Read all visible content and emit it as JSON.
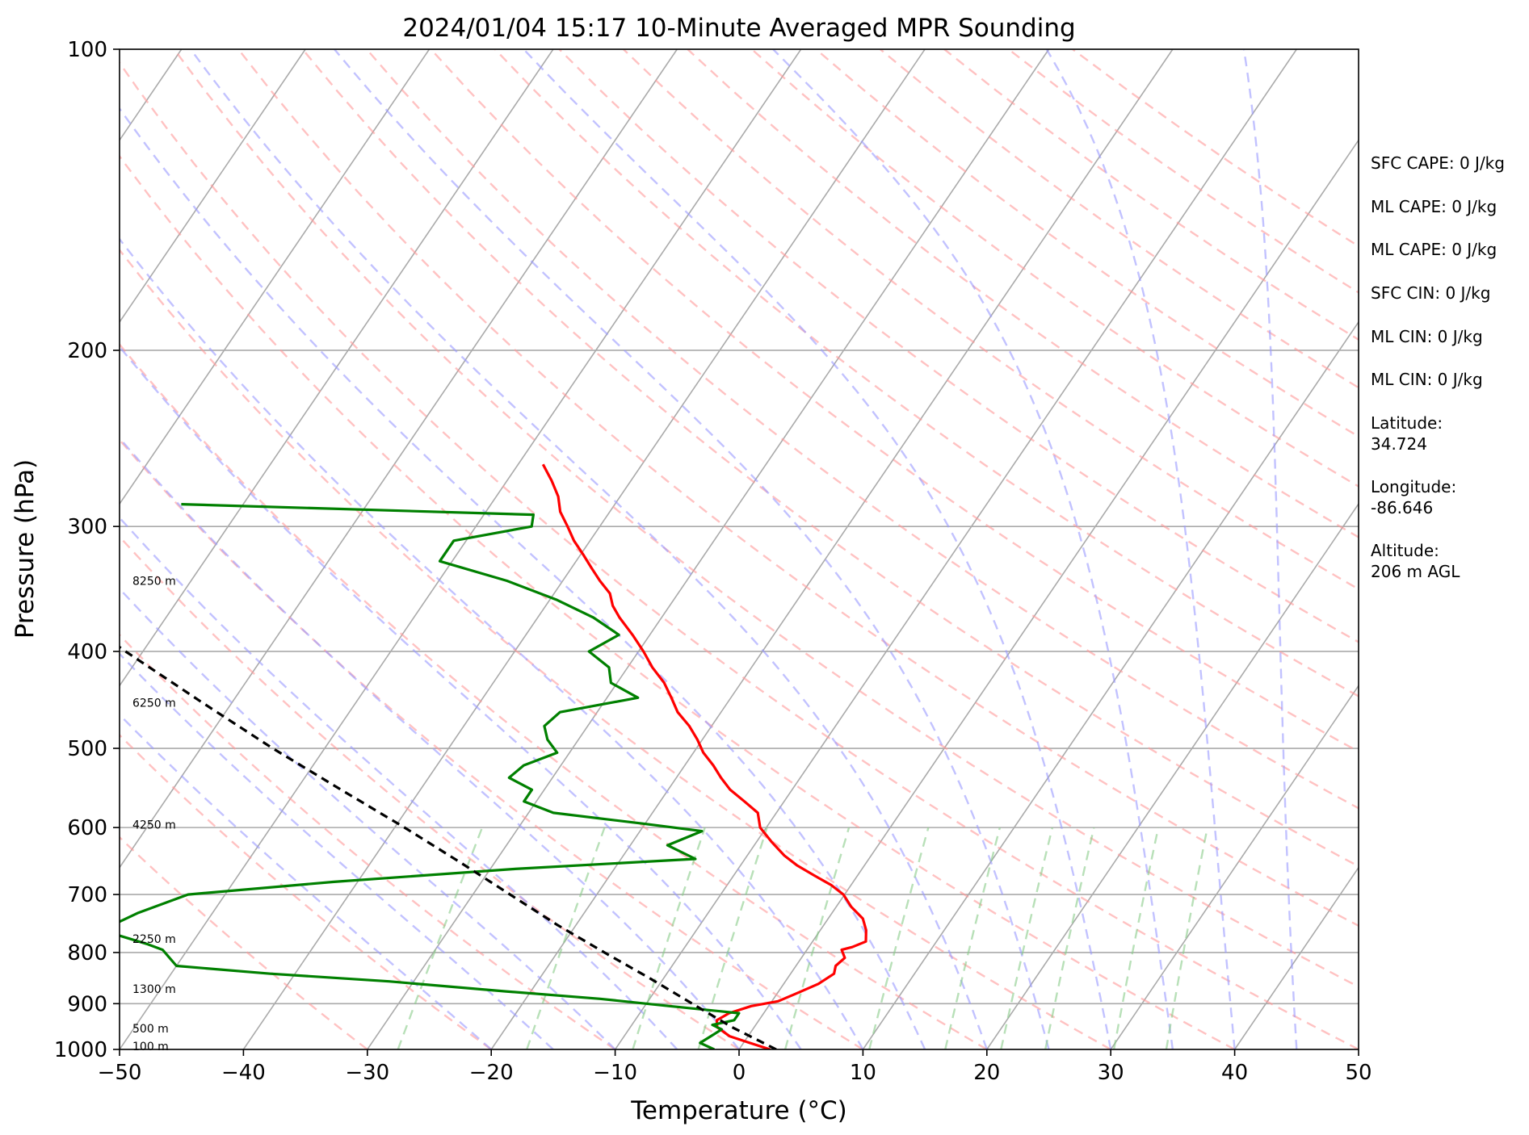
{
  "chart_data": {
    "type": "line",
    "subtype": "skew-t log-p sounding",
    "title": "2024/01/04 15:17 10-Minute Averaged MPR Sounding",
    "xlabel": "Temperature (°C)",
    "ylabel": "Pressure (hPa)",
    "xlim": [
      -50,
      50
    ],
    "ylim": [
      1000,
      100
    ],
    "y_scale": "log",
    "x_ticks": [
      -50,
      -40,
      -30,
      -20,
      -10,
      0,
      10,
      20,
      30,
      40,
      50
    ],
    "x_tick_labels": [
      "−50",
      "−40",
      "−30",
      "−20",
      "−10",
      "0",
      "10",
      "20",
      "30",
      "40",
      "50"
    ],
    "y_ticks": [
      100,
      200,
      300,
      400,
      500,
      600,
      700,
      800,
      900,
      1000
    ],
    "y_tick_labels": [
      "100",
      "200",
      "300",
      "400",
      "500",
      "600",
      "700",
      "800",
      "900",
      "1000"
    ],
    "grid": true,
    "colors": {
      "temperature": "#ff0000",
      "dewpoint": "#008000",
      "parcel": "#000000",
      "isotherm": "#aaaaaa",
      "isobar": "#aaaaaa",
      "dry_adiabat": "#ff9999",
      "moist_adiabat": "#9999ff",
      "mixing_ratio": "#88cc88"
    },
    "series": [
      {
        "role": "temperature",
        "p": [
          1000,
          985,
          970,
          950,
          935,
          920,
          905,
          895,
          880,
          860,
          840,
          825,
          810,
          795,
          790,
          780,
          760,
          740,
          720,
          700,
          685,
          670,
          655,
          640,
          620,
          600,
          580,
          565,
          550,
          535,
          520,
          505,
          490,
          475,
          460,
          445,
          430,
          415,
          400,
          385,
          370,
          360,
          350,
          340,
          330,
          320,
          310,
          300,
          290,
          280,
          270,
          260
        ],
        "t": [
          2.5,
          0.5,
          -1.5,
          -3.0,
          -3.4,
          -2.8,
          -1.4,
          0.5,
          1.5,
          2.8,
          3.5,
          3.2,
          3.5,
          2.8,
          3.5,
          4.3,
          3.7,
          2.8,
          1.2,
          -0.1,
          -1.6,
          -3.5,
          -5.4,
          -7.0,
          -8.8,
          -10.5,
          -11.5,
          -13.2,
          -15.0,
          -16.4,
          -17.7,
          -19.2,
          -20.4,
          -21.8,
          -23.5,
          -24.8,
          -26.2,
          -28.0,
          -29.6,
          -31.4,
          -33.4,
          -34.6,
          -35.5,
          -37.0,
          -38.4,
          -39.8,
          -41.3,
          -42.6,
          -44.0,
          -45.0,
          -46.4,
          -48.0
        ]
      },
      {
        "role": "dewpoint",
        "p": [
          1000,
          985,
          970,
          955,
          945,
          935,
          920,
          905,
          890,
          875,
          855,
          840,
          825,
          810,
          795,
          785,
          760,
          730,
          700,
          680,
          660,
          645,
          625,
          605,
          595,
          580,
          565,
          550,
          535,
          520,
          505,
          490,
          475,
          460,
          445,
          430,
          415,
          400,
          385,
          370,
          355,
          340,
          325,
          310,
          300,
          292,
          285
        ],
        "t": [
          -2.0,
          -3.5,
          -3.0,
          -2.5,
          -3.5,
          -2.0,
          -2.0,
          -8.0,
          -14.0,
          -22.0,
          -32.0,
          -42.0,
          -50.0,
          -51.0,
          -52.0,
          -53.5,
          -58.0,
          -56.0,
          -53.0,
          -42.0,
          -28.0,
          -14.0,
          -17.0,
          -15.0,
          -20.0,
          -28.0,
          -31.0,
          -31.0,
          -33.5,
          -33.0,
          -31.0,
          -32.5,
          -33.5,
          -33.0,
          -27.5,
          -30.5,
          -31.5,
          -34.0,
          -32.5,
          -35.5,
          -39.5,
          -44.5,
          -51.0,
          -51.0,
          -45.5,
          -46.0,
          -75.0
        ]
      },
      {
        "role": "parcel",
        "p": [
          1000,
          950,
          900,
          850,
          800,
          750,
          700,
          650,
          600,
          550,
          500,
          450,
          400,
          350,
          300,
          275
        ],
        "t": [
          3.0,
          -1.8,
          -6.3,
          -11.0,
          -16.2,
          -21.6,
          -27.0,
          -32.8,
          -39.2,
          -46.4,
          -54.2,
          -62.4,
          -71.4,
          -81.2,
          -91.9,
          -98.1
        ]
      }
    ],
    "height_labels": [
      {
        "p": 993,
        "label": "100 m"
      },
      {
        "p": 953,
        "label": "500 m"
      },
      {
        "p": 870,
        "label": "1300 m"
      },
      {
        "p": 775,
        "label": "2250 m"
      },
      {
        "p": 596,
        "label": "4250 m"
      },
      {
        "p": 450,
        "label": "6250 m"
      },
      {
        "p": 340,
        "label": "8250 m"
      }
    ],
    "annotations": [
      "SFC CAPE: 0 J/kg",
      "ML CAPE: 0 J/kg",
      "ML CAPE: 0 J/kg",
      "SFC CIN: 0 J/kg",
      "ML CIN: 0 J/kg",
      "ML CIN: 0 J/kg",
      "Latitude:",
      "34.724",
      "Longitude:",
      "-86.646",
      "Altitude:",
      "206 m AGL"
    ]
  }
}
